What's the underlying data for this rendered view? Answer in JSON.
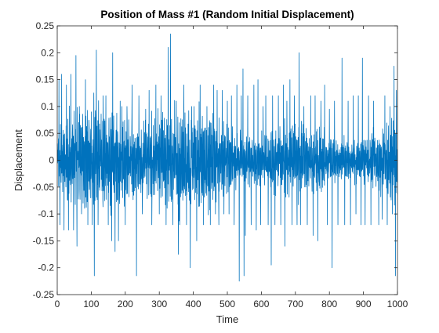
{
  "chart_data": {
    "type": "line",
    "title": "Position of Mass #1 (Random Initial Displacement)",
    "xlabel": "Time",
    "ylabel": "Displacement",
    "xlim": [
      0,
      1000
    ],
    "ylim": [
      -0.25,
      0.25
    ],
    "xticks": [
      0,
      100,
      200,
      300,
      400,
      500,
      600,
      700,
      800,
      900,
      1000
    ],
    "yticks": [
      -0.25,
      -0.2,
      -0.15,
      -0.1,
      -0.05,
      0,
      0.05,
      0.1,
      0.15,
      0.2,
      0.25
    ],
    "xtick_labels": [
      "0",
      "100",
      "200",
      "300",
      "400",
      "500",
      "600",
      "700",
      "800",
      "900",
      "1000"
    ],
    "ytick_labels": [
      "-0.25",
      "-0.2",
      "-0.15",
      "-0.1",
      "-0.05",
      "0",
      "0.05",
      "0.1",
      "0.15",
      "0.2",
      "0.25"
    ],
    "grid": false,
    "box": true,
    "line_color": "#0072BD",
    "axis_color": "#262626",
    "series": [
      {
        "x_start": 0,
        "x_end": 1000,
        "peak_max": 0.235,
        "peak_max_at": 333,
        "peak_min": -0.225,
        "peak_min_at": 535,
        "spikes": [
          [
            5,
            0.15
          ],
          [
            8,
            -0.12
          ],
          [
            13,
            0.16
          ],
          [
            20,
            -0.13
          ],
          [
            27,
            0.14
          ],
          [
            33,
            -0.13
          ],
          [
            40,
            0.16
          ],
          [
            48,
            -0.13
          ],
          [
            55,
            0.195
          ],
          [
            58,
            -0.16
          ],
          [
            65,
            0.1
          ],
          [
            83,
            0.15
          ],
          [
            90,
            -0.12
          ],
          [
            100,
            0.09
          ],
          [
            103,
            -0.12
          ],
          [
            109,
            -0.215
          ],
          [
            115,
            0.205
          ],
          [
            120,
            -0.12
          ],
          [
            135,
            0.12
          ],
          [
            143,
            0.12
          ],
          [
            150,
            -0.12
          ],
          [
            160,
            -0.15
          ],
          [
            163,
            0.2
          ],
          [
            170,
            -0.17
          ],
          [
            180,
            -0.15
          ],
          [
            185,
            0.11
          ],
          [
            190,
            0.1
          ],
          [
            200,
            -0.12
          ],
          [
            205,
            0.1
          ],
          [
            220,
            0.14
          ],
          [
            233,
            -0.215
          ],
          [
            240,
            0.12
          ],
          [
            250,
            -0.1
          ],
          [
            260,
            0.095
          ],
          [
            270,
            0.13
          ],
          [
            278,
            -0.12
          ],
          [
            290,
            0.14
          ],
          [
            300,
            -0.1
          ],
          [
            305,
            0.12
          ],
          [
            320,
            -0.12
          ],
          [
            326,
            0.21
          ],
          [
            333,
            0.235
          ],
          [
            340,
            -0.12
          ],
          [
            350,
            0.11
          ],
          [
            356,
            -0.175
          ],
          [
            360,
            -0.12
          ],
          [
            372,
            0.14
          ],
          [
            380,
            -0.12
          ],
          [
            391,
            -0.2
          ],
          [
            395,
            0.1
          ],
          [
            402,
            0.1
          ],
          [
            410,
            -0.15
          ],
          [
            420,
            0.14
          ],
          [
            430,
            -0.12
          ],
          [
            440,
            0.1
          ],
          [
            450,
            -0.12
          ],
          [
            460,
            0.14
          ],
          [
            465,
            -0.1
          ],
          [
            470,
            0.13
          ],
          [
            475,
            -0.12
          ],
          [
            485,
            0.13
          ],
          [
            490,
            -0.1
          ],
          [
            500,
            0.11
          ],
          [
            505,
            -0.1
          ],
          [
            512,
            0.12
          ],
          [
            520,
            -0.12
          ],
          [
            528,
            0.14
          ],
          [
            535,
            -0.225
          ],
          [
            541,
            0.12
          ],
          [
            546,
            0.17
          ],
          [
            549,
            -0.215
          ],
          [
            553,
            -0.14
          ],
          [
            560,
            0.12
          ],
          [
            570,
            -0.12
          ],
          [
            578,
            0.14
          ],
          [
            585,
            -0.13
          ],
          [
            590,
            0.15
          ],
          [
            598,
            -0.12
          ],
          [
            605,
            0.1
          ],
          [
            613,
            0.12
          ],
          [
            620,
            -0.12
          ],
          [
            629,
            -0.195
          ],
          [
            633,
            0.12
          ],
          [
            640,
            -0.12
          ],
          [
            650,
            0.12
          ],
          [
            657,
            -0.12
          ],
          [
            665,
            0.14
          ],
          [
            669,
            -0.16
          ],
          [
            675,
            0.11
          ],
          [
            684,
            0.15
          ],
          [
            690,
            -0.12
          ],
          [
            697,
            0.12
          ],
          [
            705,
            -0.12
          ],
          [
            711,
            0.2
          ],
          [
            715,
            -0.12
          ],
          [
            725,
            0.1
          ],
          [
            735,
            -0.12
          ],
          [
            745,
            0.12
          ],
          [
            752,
            -0.14
          ],
          [
            758,
            0.12
          ],
          [
            766,
            -0.15
          ],
          [
            775,
            0.11
          ],
          [
            786,
            0.14
          ],
          [
            794,
            -0.12
          ],
          [
            800,
            0.095
          ],
          [
            808,
            -0.2
          ],
          [
            815,
            0.11
          ],
          [
            825,
            -0.12
          ],
          [
            837,
            0.19
          ],
          [
            845,
            -0.12
          ],
          [
            855,
            0.11
          ],
          [
            862,
            -0.12
          ],
          [
            870,
            0.12
          ],
          [
            878,
            -0.1
          ],
          [
            885,
            0.12
          ],
          [
            893,
            -0.12
          ],
          [
            897,
            0.19
          ],
          [
            905,
            -0.12
          ],
          [
            915,
            0.12
          ],
          [
            922,
            -0.12
          ],
          [
            930,
            0.11
          ],
          [
            945,
            -0.12
          ],
          [
            955,
            -0.11
          ],
          [
            963,
            0.12
          ],
          [
            970,
            -0.12
          ],
          [
            978,
            0.1
          ],
          [
            985,
            -0.1
          ],
          [
            990,
            0.175
          ],
          [
            994,
            -0.215
          ],
          [
            997,
            0.13
          ],
          [
            999,
            0.02
          ]
        ]
      }
    ]
  }
}
